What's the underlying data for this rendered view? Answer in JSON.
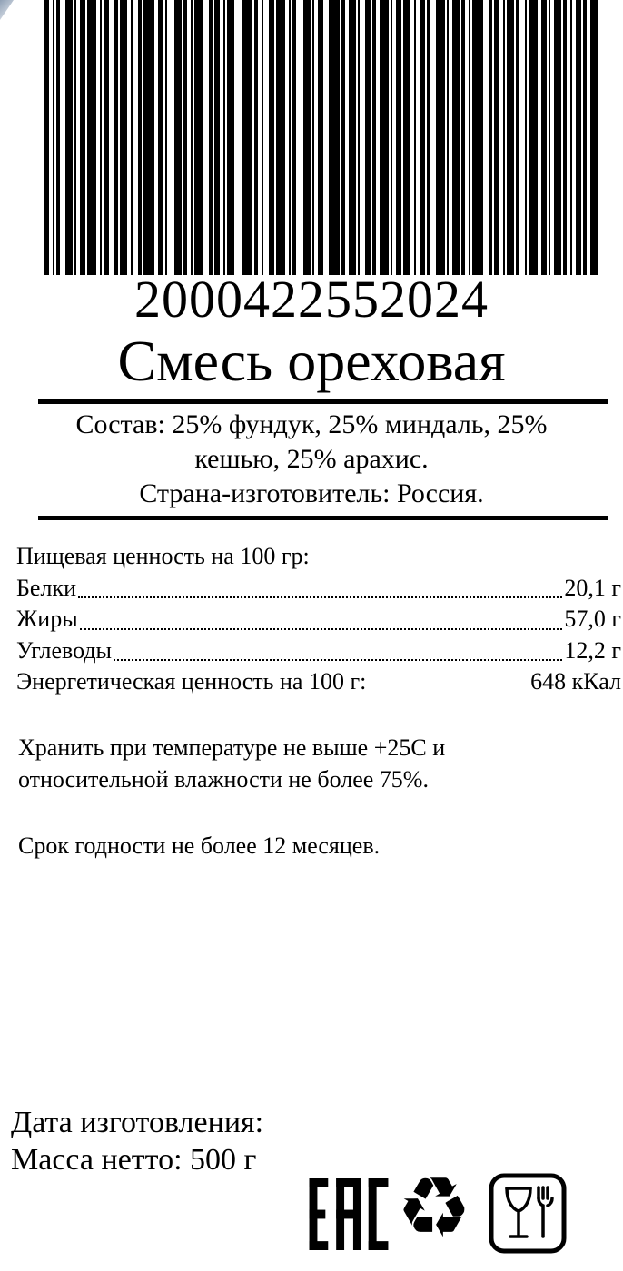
{
  "page": {
    "background": "#ffffff",
    "text_color": "#000000",
    "accent": "#000000"
  },
  "corner_artifact": {
    "color": "#8fa0b5"
  },
  "barcode": {
    "value": "2000422552024",
    "pattern": [
      [
        6,
        4
      ],
      [
        2,
        2
      ],
      [
        4,
        6
      ],
      [
        8,
        2
      ],
      [
        2,
        4
      ],
      [
        6,
        2
      ],
      [
        10,
        4
      ],
      [
        2,
        2
      ],
      [
        6,
        6
      ],
      [
        4,
        2
      ],
      [
        8,
        4
      ],
      [
        2,
        6
      ],
      [
        4,
        2
      ],
      [
        12,
        4
      ],
      [
        6,
        2
      ],
      [
        2,
        8
      ],
      [
        8,
        2
      ],
      [
        4,
        4
      ],
      [
        2,
        2
      ],
      [
        10,
        6
      ],
      [
        4,
        2
      ],
      [
        6,
        4
      ],
      [
        2,
        2
      ],
      [
        8,
        8
      ],
      [
        12,
        2
      ],
      [
        4,
        4
      ],
      [
        2,
        6
      ],
      [
        6,
        2
      ],
      [
        10,
        4
      ],
      [
        2,
        2
      ],
      [
        4,
        8
      ],
      [
        8,
        2
      ],
      [
        2,
        4
      ],
      [
        6,
        6
      ],
      [
        12,
        2
      ],
      [
        4,
        4
      ],
      [
        8,
        2
      ],
      [
        2,
        6
      ],
      [
        6,
        2
      ],
      [
        4,
        4
      ],
      [
        10,
        2
      ],
      [
        2,
        4
      ],
      [
        6,
        2
      ],
      [
        8,
        4
      ],
      [
        2,
        4
      ],
      [
        6,
        2
      ],
      [
        4,
        6
      ],
      [
        10,
        2
      ],
      [
        2,
        4
      ],
      [
        8,
        2
      ],
      [
        4,
        4
      ],
      [
        2,
        2
      ],
      [
        12,
        6
      ],
      [
        4,
        2
      ],
      [
        6,
        4
      ],
      [
        2,
        2
      ],
      [
        8,
        2
      ],
      [
        4,
        6
      ],
      [
        2,
        2
      ],
      [
        10,
        4
      ],
      [
        6,
        2
      ],
      [
        2,
        4
      ],
      [
        8,
        2
      ],
      [
        4,
        4
      ],
      [
        2,
        4
      ],
      [
        6,
        2
      ],
      [
        4,
        4
      ],
      [
        8,
        0
      ]
    ]
  },
  "product": {
    "title": "Смесь ореховая"
  },
  "composition": {
    "line1": "Состав: 25% фундук, 25% миндаль, 25%",
    "line2": "кешью, 25% арахис.",
    "line3": "Страна-изготовитель: Россия."
  },
  "nutrition": {
    "header": "Пищевая ценность на 100 гр:",
    "rows": [
      {
        "label": "Белки",
        "value": "20,1 г"
      },
      {
        "label": "Жиры",
        "value": "57,0 г"
      },
      {
        "label": "Углеводы",
        "value": "12,2 г"
      }
    ],
    "energy_label": "Энергетическая ценность на 100 г:",
    "energy_value": "648 кКал"
  },
  "storage": {
    "line1": "Хранить при температуре не выше +25С и",
    "line2": "относительной влажности не более 75%."
  },
  "shelf_life": "Срок годности не более 12 месяцев.",
  "footer": {
    "date_label": "Дата изготовления:",
    "net_weight": "Масса нетто: 500 г"
  },
  "icons": {
    "eac_name": "eac-conformity-mark",
    "recycle_glyph": "♻",
    "food_safe_name": "glass-and-fork-food-safe"
  }
}
